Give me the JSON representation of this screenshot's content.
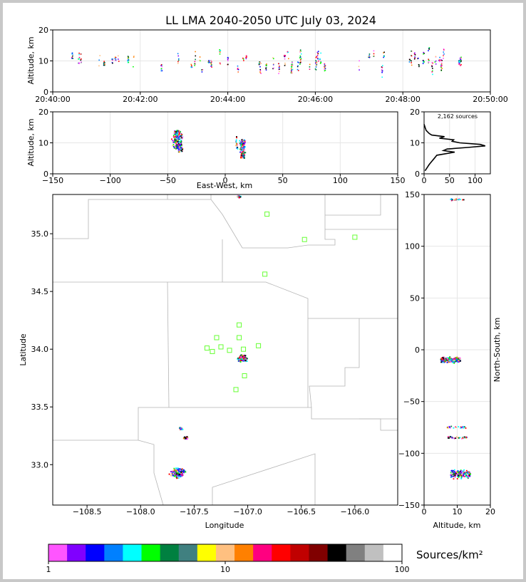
{
  "title": "LL LMA 2040-2050 UTC July 03, 2024",
  "colors": {
    "grid": "#e6e6e6",
    "station": "#66ff33",
    "boundary": "#b4b4b4"
  },
  "panels": {
    "time_height": {
      "ylabel": "Altitude, km",
      "y_ticks": [
        "0",
        "10",
        "20"
      ],
      "x_ticks": [
        "20:40:00",
        "20:42:00",
        "20:44:00",
        "20:46:00",
        "20:48:00",
        "20:50:00"
      ]
    },
    "ew_height": {
      "xlabel": "East-West, km",
      "ylabel": "Altitude, km",
      "x_ticks": [
        "−150",
        "−100",
        "−50",
        "0",
        "50",
        "100",
        "150"
      ],
      "y_ticks": [
        "0",
        "10",
        "20"
      ]
    },
    "histogram": {
      "count_label": "2,162 sources",
      "x_ticks": [
        "0",
        "50",
        "100"
      ],
      "y_ticks": [
        "0",
        "10",
        "20"
      ]
    },
    "plan": {
      "xlabel": "Longitude",
      "ylabel": "Latitude",
      "x_ticks": [
        "−108.5",
        "−108.0",
        "−107.5",
        "−107.0",
        "−106.5",
        "−106.0"
      ],
      "y_ticks": [
        "33.0",
        "33.5",
        "34.0",
        "34.5",
        "35.0"
      ]
    },
    "ns_height": {
      "xlabel": "Altitude, km",
      "ylabel": "North-South, km",
      "x_ticks": [
        "0",
        "10",
        "20"
      ],
      "y_ticks": [
        "−150",
        "−100",
        "−50",
        "0",
        "50",
        "100",
        "150"
      ]
    }
  },
  "colorbar": {
    "label": "Sources/km²",
    "ticks": [
      "1",
      "10",
      "100"
    ],
    "colors": [
      "#ff55ff",
      "#8000ff",
      "#0000ff",
      "#0080ff",
      "#00ffff",
      "#00ff00",
      "#008040",
      "#408080",
      "#ffff00",
      "#ffc080",
      "#ff8000",
      "#ff0080",
      "#ff0000",
      "#c00000",
      "#800000",
      "#000000",
      "#808080",
      "#c0c0c0",
      "#ffffff"
    ]
  },
  "chart_data": {
    "type": "scatter",
    "title": "LL LMA 2040-2050 UTC July 03, 2024",
    "total_sources": 2162,
    "source_clusters": [
      {
        "lon": -107.05,
        "lat": 33.92,
        "ew_km": 15,
        "ns_km": -10,
        "alt_km": [
          5,
          11
        ],
        "time": "20:44:30"
      },
      {
        "lon": -107.62,
        "lat": 33.31,
        "ew_km": -40,
        "ns_km": -75,
        "alt_km": [
          7,
          13
        ],
        "time": "20:42:50"
      },
      {
        "lon": -107.58,
        "lat": 33.23,
        "ew_km": -38,
        "ns_km": -85,
        "alt_km": [
          7,
          13
        ],
        "time": "20:43:00"
      },
      {
        "lon": -107.65,
        "lat": 32.93,
        "ew_km": -42,
        "ns_km": -120,
        "alt_km": [
          8,
          14
        ],
        "time": "20:47:00"
      },
      {
        "lon": -107.08,
        "lat": 35.32,
        "ew_km": 10,
        "ns_km": 145,
        "alt_km": [
          8,
          12
        ],
        "time": "20:44:10"
      }
    ],
    "stations": [
      {
        "lon": -106.82,
        "lat": 35.17
      },
      {
        "lon": -106.47,
        "lat": 34.95
      },
      {
        "lon": -106.0,
        "lat": 34.97
      },
      {
        "lon": -106.84,
        "lat": 34.65
      },
      {
        "lon": -107.08,
        "lat": 34.21
      },
      {
        "lon": -107.29,
        "lat": 34.1
      },
      {
        "lon": -107.08,
        "lat": 34.1
      },
      {
        "lon": -107.38,
        "lat": 34.01
      },
      {
        "lon": -107.33,
        "lat": 33.98
      },
      {
        "lon": -107.25,
        "lat": 34.02
      },
      {
        "lon": -107.17,
        "lat": 33.99
      },
      {
        "lon": -107.04,
        "lat": 34.0
      },
      {
        "lon": -106.9,
        "lat": 34.03
      },
      {
        "lon": -107.03,
        "lat": 33.77
      },
      {
        "lon": -107.11,
        "lat": 33.65
      }
    ],
    "altitude_histogram": [
      {
        "alt_km": 1,
        "count": 2
      },
      {
        "alt_km": 2,
        "count": 6
      },
      {
        "alt_km": 3,
        "count": 10
      },
      {
        "alt_km": 4,
        "count": 15
      },
      {
        "alt_km": 5,
        "count": 20
      },
      {
        "alt_km": 6,
        "count": 25
      },
      {
        "alt_km": 7,
        "count": 60
      },
      {
        "alt_km": 7.5,
        "count": 38
      },
      {
        "alt_km": 8,
        "count": 45
      },
      {
        "alt_km": 8.5,
        "count": 85
      },
      {
        "alt_km": 9,
        "count": 120
      },
      {
        "alt_km": 9.5,
        "count": 110
      },
      {
        "alt_km": 10,
        "count": 70
      },
      {
        "alt_km": 10.5,
        "count": 55
      },
      {
        "alt_km": 11,
        "count": 58
      },
      {
        "alt_km": 11.5,
        "count": 30
      },
      {
        "alt_km": 12,
        "count": 40
      },
      {
        "alt_km": 12.5,
        "count": 15
      },
      {
        "alt_km": 13,
        "count": 10
      },
      {
        "alt_km": 14,
        "count": 4
      },
      {
        "alt_km": 15,
        "count": 2
      },
      {
        "alt_km": 16,
        "count": 0
      }
    ],
    "axes": {
      "time_range": [
        "20:40:00",
        "20:50:00"
      ],
      "alt_range": [
        0,
        20
      ],
      "ew_range": [
        -150,
        150
      ],
      "ns_range": [
        -150,
        150
      ],
      "lon_range": [
        -108.82,
        -105.6
      ],
      "lat_range": [
        32.65,
        35.34
      ],
      "hist_range": [
        0,
        130
      ]
    }
  }
}
